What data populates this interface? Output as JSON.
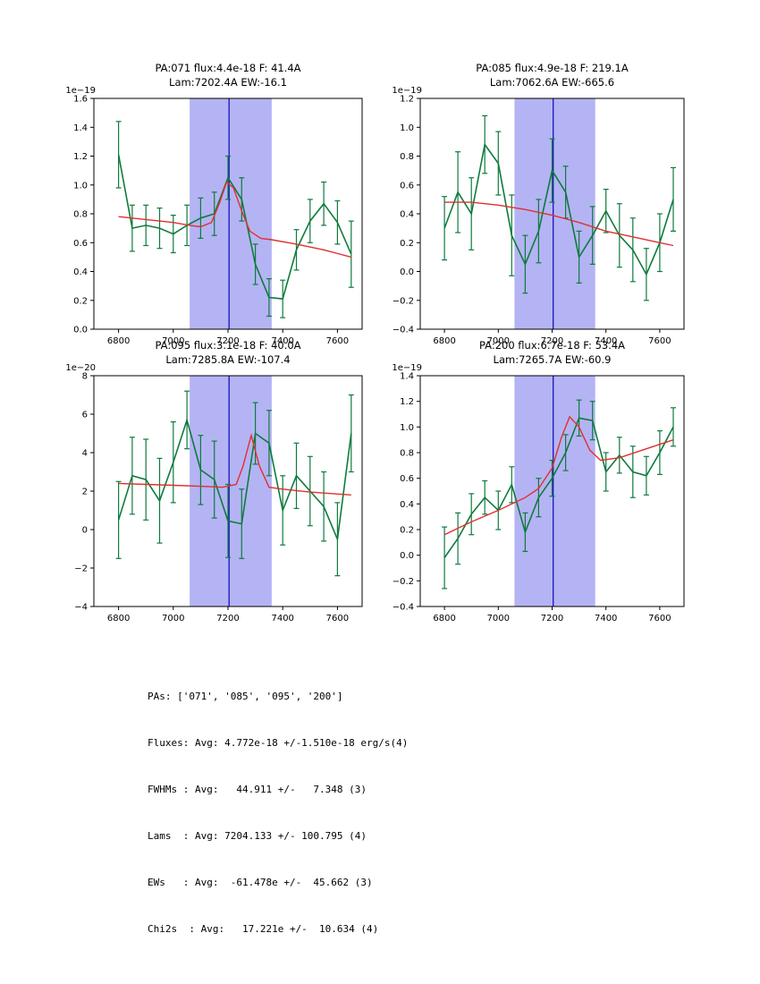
{
  "colors": {
    "background": "#ffffff",
    "band": "#b4b4f4",
    "vline": "#1414bb",
    "data": "#0e7b3d",
    "fit": "#e03030",
    "axis": "#000000"
  },
  "chart_data": [
    {
      "type": "line",
      "title1": "PA:071 flux:4.4e-18 F: 41.4A",
      "title2": "Lam:7202.4A EW:-16.1",
      "offset_label": "1e−19",
      "xlabel": "",
      "ylabel": "",
      "xlim": [
        6710,
        7690
      ],
      "ylim": [
        0.0,
        1.6
      ],
      "xticks": [
        6800,
        7000,
        7200,
        7400,
        7600
      ],
      "xtick_labels": [
        "6800",
        "7000",
        "7200",
        "7400",
        "7600"
      ],
      "ytick_vals": [
        0.0,
        0.2,
        0.4,
        0.6,
        0.8,
        1.0,
        1.2,
        1.4,
        1.6
      ],
      "ytick_labels": [
        "0.0",
        "0.2",
        "0.4",
        "0.6",
        "0.8",
        "1.0",
        "1.2",
        "1.4",
        "1.6"
      ],
      "band": [
        7060,
        7360
      ],
      "vline": 7204,
      "x": [
        6800,
        6850,
        6900,
        6950,
        7000,
        7050,
        7100,
        7150,
        7200,
        7250,
        7300,
        7350,
        7400,
        7450,
        7500,
        7550,
        7600,
        7650
      ],
      "y": [
        1.21,
        0.7,
        0.72,
        0.7,
        0.66,
        0.72,
        0.77,
        0.8,
        1.05,
        0.9,
        0.45,
        0.22,
        0.21,
        0.55,
        0.75,
        0.87,
        0.74,
        0.52
      ],
      "yerr": [
        0.23,
        0.16,
        0.14,
        0.14,
        0.13,
        0.14,
        0.14,
        0.15,
        0.15,
        0.15,
        0.14,
        0.13,
        0.13,
        0.14,
        0.15,
        0.15,
        0.15,
        0.23
      ],
      "fit_x": [
        6800,
        6900,
        7000,
        7060,
        7100,
        7140,
        7170,
        7195,
        7220,
        7250,
        7280,
        7320,
        7360,
        7450,
        7550,
        7650
      ],
      "fit_y": [
        0.78,
        0.76,
        0.74,
        0.72,
        0.71,
        0.74,
        0.88,
        1.02,
        0.98,
        0.82,
        0.68,
        0.63,
        0.62,
        0.59,
        0.55,
        0.5
      ]
    },
    {
      "type": "line",
      "title1": "PA:085 flux:4.9e-18 F: 219.1A",
      "title2": "Lam:7062.6A EW:-665.6",
      "offset_label": "1e−19",
      "xlabel": "",
      "ylabel": "",
      "xlim": [
        6710,
        7690
      ],
      "ylim": [
        -0.4,
        1.2
      ],
      "xticks": [
        6800,
        7000,
        7200,
        7400,
        7600
      ],
      "xtick_labels": [
        "6800",
        "7000",
        "7200",
        "7400",
        "7600"
      ],
      "ytick_vals": [
        -0.4,
        -0.2,
        0.0,
        0.2,
        0.4,
        0.6,
        0.8,
        1.0,
        1.2
      ],
      "ytick_labels": [
        "−0.4",
        "−0.2",
        "0.0",
        "0.2",
        "0.4",
        "0.6",
        "0.8",
        "1.0",
        "1.2"
      ],
      "band": [
        7060,
        7360
      ],
      "vline": 7204,
      "x": [
        6800,
        6850,
        6900,
        6950,
        7000,
        7050,
        7100,
        7150,
        7200,
        7250,
        7300,
        7350,
        7400,
        7450,
        7500,
        7550,
        7600,
        7650
      ],
      "y": [
        0.3,
        0.55,
        0.4,
        0.88,
        0.75,
        0.25,
        0.05,
        0.28,
        0.7,
        0.55,
        0.1,
        0.25,
        0.42,
        0.25,
        0.15,
        -0.02,
        0.2,
        0.5
      ],
      "yerr": [
        0.22,
        0.28,
        0.25,
        0.2,
        0.22,
        0.28,
        0.2,
        0.22,
        0.22,
        0.18,
        0.18,
        0.2,
        0.15,
        0.22,
        0.22,
        0.18,
        0.2,
        0.22
      ],
      "fit_x": [
        6800,
        6900,
        7000,
        7100,
        7200,
        7300,
        7400,
        7500,
        7600,
        7650
      ],
      "fit_y": [
        0.48,
        0.48,
        0.46,
        0.43,
        0.39,
        0.34,
        0.28,
        0.24,
        0.2,
        0.18
      ]
    },
    {
      "type": "line",
      "title1": "PA:095 flux:3.1e-18 F: 40.0A",
      "title2": "Lam:7285.8A EW:-107.4",
      "offset_label": "1e−20",
      "xlabel": "",
      "ylabel": "",
      "xlim": [
        6710,
        7690
      ],
      "ylim": [
        -4,
        8
      ],
      "xticks": [
        6800,
        7000,
        7200,
        7400,
        7600
      ],
      "xtick_labels": [
        "6800",
        "7000",
        "7200",
        "7400",
        "7600"
      ],
      "ytick_vals": [
        -4,
        -2,
        0,
        2,
        4,
        6,
        8
      ],
      "ytick_labels": [
        "−4",
        "−2",
        "0",
        "2",
        "4",
        "6",
        "8"
      ],
      "band": [
        7060,
        7360
      ],
      "vline": 7204,
      "x": [
        6800,
        6850,
        6900,
        6950,
        7000,
        7050,
        7100,
        7150,
        7200,
        7250,
        7300,
        7350,
        7400,
        7450,
        7500,
        7550,
        7600,
        7650
      ],
      "y": [
        0.5,
        2.8,
        2.6,
        1.5,
        3.5,
        5.7,
        3.1,
        2.6,
        0.45,
        0.3,
        5.0,
        4.5,
        1.0,
        2.8,
        2.0,
        1.2,
        -0.5,
        5.0
      ],
      "yerr": [
        2.0,
        2.0,
        2.1,
        2.2,
        2.1,
        1.5,
        1.8,
        2.0,
        1.9,
        1.8,
        1.6,
        1.7,
        1.8,
        1.7,
        1.8,
        1.8,
        1.9,
        2.0
      ],
      "fit_x": [
        6800,
        6900,
        7000,
        7100,
        7180,
        7230,
        7255,
        7285,
        7315,
        7350,
        7400,
        7500,
        7650
      ],
      "fit_y": [
        2.4,
        2.35,
        2.3,
        2.25,
        2.2,
        2.35,
        3.3,
        4.9,
        3.3,
        2.2,
        2.1,
        1.95,
        1.8
      ]
    },
    {
      "type": "line",
      "title1": "PA:200 flux:6.7e-18 F: 53.4A",
      "title2": "Lam:7265.7A EW:-60.9",
      "offset_label": "1e−19",
      "xlabel": "",
      "ylabel": "",
      "xlim": [
        6710,
        7690
      ],
      "ylim": [
        -0.4,
        1.4
      ],
      "xticks": [
        6800,
        7000,
        7200,
        7400,
        7600
      ],
      "xtick_labels": [
        "6800",
        "7000",
        "7200",
        "7400",
        "7600"
      ],
      "ytick_vals": [
        -0.4,
        -0.2,
        0.0,
        0.2,
        0.4,
        0.6,
        0.8,
        1.0,
        1.2,
        1.4
      ],
      "ytick_labels": [
        "−0.4",
        "−0.2",
        "0.0",
        "0.2",
        "0.4",
        "0.6",
        "0.8",
        "1.0",
        "1.2",
        "1.4"
      ],
      "band": [
        7060,
        7360
      ],
      "vline": 7204,
      "x": [
        6800,
        6850,
        6900,
        6950,
        7000,
        7050,
        7100,
        7150,
        7200,
        7250,
        7300,
        7350,
        7400,
        7450,
        7500,
        7550,
        7600,
        7650
      ],
      "y": [
        -0.02,
        0.13,
        0.32,
        0.45,
        0.35,
        0.55,
        0.18,
        0.45,
        0.6,
        0.8,
        1.07,
        1.05,
        0.65,
        0.78,
        0.65,
        0.62,
        0.8,
        1.0
      ],
      "yerr": [
        0.24,
        0.2,
        0.16,
        0.13,
        0.15,
        0.14,
        0.15,
        0.15,
        0.14,
        0.14,
        0.14,
        0.15,
        0.15,
        0.14,
        0.2,
        0.15,
        0.17,
        0.15
      ],
      "fit_x": [
        6800,
        6900,
        7000,
        7100,
        7150,
        7200,
        7235,
        7265,
        7300,
        7340,
        7380,
        7450,
        7550,
        7650
      ],
      "fit_y": [
        0.16,
        0.26,
        0.35,
        0.45,
        0.52,
        0.68,
        0.92,
        1.08,
        1.0,
        0.82,
        0.74,
        0.76,
        0.83,
        0.9
      ]
    }
  ],
  "summary": {
    "lines": [
      "PAs: ['071', '085', '095', '200']",
      "Fluxes: Avg: 4.772e-18 +/-1.510e-18 erg/s(4)",
      "FWHMs : Avg:   44.911 +/-   7.348 (3)",
      "Lams  : Avg: 7204.133 +/- 100.795 (4)",
      "EWs   : Avg:  -61.478e +/-  45.662 (3)",
      "Chi2s  : Avg:   17.221e +/-  10.634 (4)"
    ]
  }
}
